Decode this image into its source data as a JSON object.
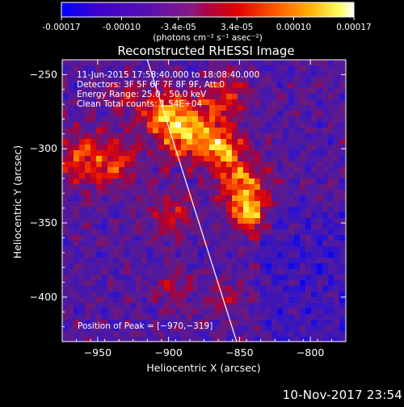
{
  "colorbar": {
    "tick_labels": [
      "-0.00017",
      "-0.00010",
      "-3.4e-05",
      "3.4e-05",
      "0.00010",
      "0.00017"
    ],
    "tick_values": [
      -0.00017,
      -0.0001,
      -3.4e-05,
      3.4e-05,
      0.0001,
      0.00017
    ],
    "range": [
      -0.00017,
      0.00017
    ],
    "unit_label": "(photons cm⁻² s⁻¹ asec⁻²)",
    "colors": [
      "#0000ff",
      "#5000c8",
      "#7a1aa8",
      "#b00060",
      "#e00000",
      "#ff6000",
      "#ffb000",
      "#ffff40",
      "#ffffff"
    ]
  },
  "chart_data": {
    "type": "heatmap",
    "title": "Reconstructed RHESSI Image",
    "xlabel": "Heliocentric X (arcsec)",
    "ylabel": "Heliocentric Y (arcsec)",
    "xlim": [
      -975,
      -775
    ],
    "ylim": [
      -430,
      -240
    ],
    "x_ticks": [
      -950,
      -900,
      -850,
      -800
    ],
    "y_ticks": [
      -400,
      -350,
      -300,
      -250
    ],
    "x_tick_labels": [
      "−950",
      "−900",
      "−850",
      "−800"
    ],
    "y_tick_labels": [
      "−400",
      "−350",
      "−300",
      "−250"
    ],
    "annotations": [
      "11-Jun-2015 17:58:40.000 to 18:08:40.000",
      "Detectors: 3F 5F 6F 7F 8F 9F, Att 0",
      "Energy Range: 25.0 - 50.0 keV",
      "Clean     Total counts: 1.54E+04"
    ],
    "peak_label": "Position of Peak = [−970,−319]",
    "peak_position": [
      -970,
      -319
    ],
    "limb_line": [
      [
        -915,
        -240
      ],
      [
        -852,
        -430
      ]
    ],
    "limb_color": "#ffffff"
  },
  "footer": {
    "timestamp": "10-Nov-2017 23:54"
  }
}
